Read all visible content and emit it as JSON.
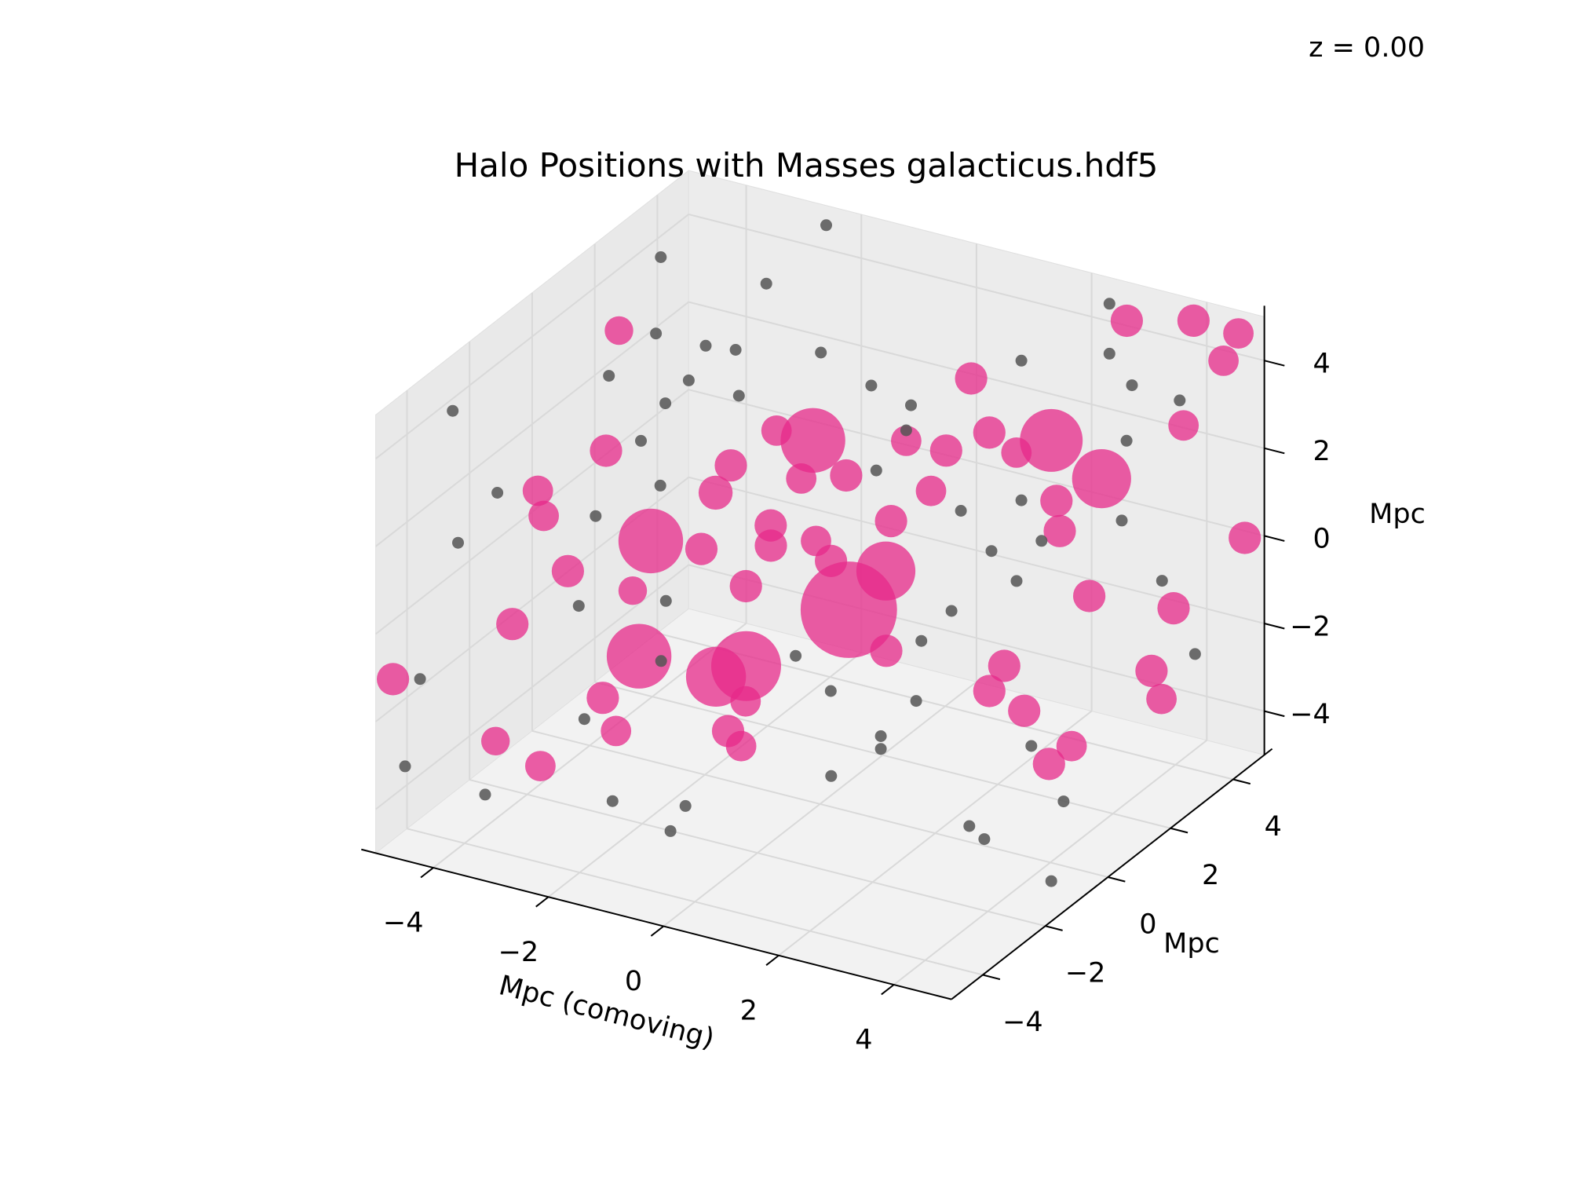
{
  "chart_data": {
    "type": "scatter3d",
    "title": "Halo Positions with Masses galacticus.hdf5",
    "annotation": "z = 0.00",
    "xlabel": "Mpc (comoving)",
    "ylabel": "Mpc",
    "zlabel": "Mpc",
    "xlim": [
      -5,
      5
    ],
    "ylim": [
      -5,
      5
    ],
    "zlim": [
      -5,
      5
    ],
    "xticks": [
      {
        "value": -4,
        "label": "−4"
      },
      {
        "value": -2,
        "label": "−2"
      },
      0,
      2,
      4
    ],
    "yticks": [
      {
        "value": -4,
        "label": "−4"
      },
      {
        "value": -2,
        "label": "−2"
      },
      0,
      2,
      4
    ],
    "zticks": [
      {
        "value": -4,
        "label": "−4"
      },
      {
        "value": -2,
        "label": "−2"
      },
      0,
      2,
      4
    ],
    "grid": true,
    "series": [
      {
        "color": "#e7298a",
        "alpha": 0.75,
        "x": [
          0.5,
          -0.74,
          -0.72,
          -1.21,
          2.93,
          3.26,
          -1.31,
          -0.97,
          0.6,
          -4.7,
          -4.58,
          -2.63,
          -3.27,
          -3.17,
          -3.17,
          -2.75,
          -1.6,
          -2.14,
          -2.92,
          -1.37,
          0.26,
          -1.55,
          -1.27,
          -1.3,
          -0.87,
          -0.09,
          -0.31,
          -0.07,
          0.19,
          0.41,
          0.84,
          0.56,
          0.69,
          0.45,
          1.31,
          1.78,
          3.62,
          3.02,
          2.61,
          3.77,
          4.55,
          4.29,
          4.14,
          4.66,
          3.59,
          4.51,
          4.67,
          4.3,
          3.2,
          2.94,
          4.09,
          4.52,
          4.37,
          1.15,
          -0.75,
          -0.51,
          0.23,
          -0.2,
          -0.43,
          -1.08
        ],
        "y": [
          0,
          -1,
          -2,
          2,
          2,
          3,
          -3,
          -4,
          1,
          -5,
          2,
          -2,
          -3,
          -3,
          -4,
          -3,
          -4,
          -5,
          -5,
          -4,
          -3,
          0,
          -1,
          1,
          1,
          1,
          -1,
          0,
          0,
          2,
          2,
          3,
          1,
          4,
          3,
          3,
          1,
          2,
          5,
          5,
          5,
          5,
          4,
          5,
          2,
          3,
          2,
          3,
          0,
          0,
          -1,
          -1,
          0,
          0,
          -1,
          -2,
          -2,
          -2,
          -3,
          -4
        ],
        "z": [
          -0.4,
          -1.54,
          -1.22,
          1.78,
          3.16,
          1.84,
          2.24,
          0.28,
          -0.04,
          -0.93,
          3.16,
          3.3,
          2.73,
          2.19,
          0.28,
          1.07,
          -0.88,
          -2.06,
          -1.75,
          -1.56,
          -1.92,
          2.21,
          2.24,
          2.53,
          1.58,
          1.91,
          1.35,
          0.98,
          0.61,
          2.31,
          1.31,
          1.58,
          1.13,
          2.63,
          2.24,
          1.94,
          1.88,
          1.81,
          4.11,
          4.5,
          4.47,
          3.76,
          2.79,
          -0.16,
          -0.17,
          -0.7,
          -1.52,
          -2.84,
          -0.78,
          -1.44,
          -0.95,
          -2.02,
          -2.22,
          -1.12,
          -2.35,
          -2.39,
          2.55,
          1.02,
          2.35,
          1.74
        ],
        "sizes": [
          800,
          420,
          310,
          360,
          340,
          300,
          360,
          360,
          300,
          90,
          70,
          90,
          80,
          80,
          90,
          90,
          90,
          80,
          70,
          80,
          80,
          90,
          100,
          80,
          80,
          90,
          90,
          80,
          90,
          80,
          80,
          90,
          90,
          90,
          90,
          80,
          90,
          90,
          90,
          90,
          80,
          80,
          80,
          90,
          90,
          90,
          90,
          80,
          90,
          90,
          90,
          90,
          80,
          90,
          80,
          90,
          90,
          90,
          90,
          70
        ]
      },
      {
        "color": "#555555",
        "alpha": 0.85,
        "size": 12,
        "x": [
          -4.94,
          -2.61,
          -3.65,
          -4.75,
          -4.48,
          -3.43,
          -3.57,
          -4.23,
          -4.49,
          -3.1,
          0.12,
          0.38,
          -1.43,
          -1.92,
          1.28,
          1.6,
          3.68,
          3.94,
          4.56,
          4.23,
          3.67,
          2.31,
          2.31,
          3.53,
          3.61,
          4.31,
          4.34,
          2.87,
          1.89,
          1.36,
          1.74,
          1.76,
          1.67,
          -0.74,
          -0.05,
          0.41,
          -0.11,
          -3.04,
          -4.16,
          -3.64,
          -2.16,
          -3.91,
          -4.21,
          -3.23,
          -3.11,
          -2.23,
          -2.81,
          -2.56,
          -1.59,
          -1.13,
          0.12,
          0.73,
          1.6,
          2.76,
          2.41,
          3.15,
          2.7,
          0.78
        ],
        "y": [
          4,
          5,
          5,
          -3,
          3,
          -4,
          -5,
          -5,
          -5,
          -5,
          -5,
          -5,
          -4,
          -4,
          -2,
          -1,
          -2,
          -2,
          -1,
          0,
          0,
          5,
          5,
          5,
          3,
          3,
          4,
          1,
          2,
          2,
          1,
          0,
          0,
          3,
          3,
          2,
          2,
          3,
          4,
          4,
          4,
          3,
          1,
          1,
          0,
          -1,
          -2,
          -3,
          -2,
          -3,
          -1,
          -1,
          -1,
          2,
          2,
          4,
          5,
          5
        ],
        "z": [
          3.6,
          4.55,
          2.87,
          4.06,
          2.57,
          3.19,
          2.56,
          -0.77,
          -2.85,
          -3.03,
          -2.79,
          -2.13,
          -3.18,
          -1.47,
          -2.82,
          -2.65,
          -3.16,
          -3.37,
          -4.68,
          -3.53,
          -2.45,
          4.4,
          3.26,
          2.6,
          1.0,
          -0.14,
          -2.36,
          0.49,
          0.29,
          1.03,
          -0.57,
          -0.69,
          -2.09,
          2.63,
          2.41,
          2.55,
          1.46,
          1.63,
          1.84,
          1.92,
          2.35,
          1.69,
          2.81,
          2.51,
          2.25,
          2.08,
          1.75,
          0.34,
          0.22,
          -0.44,
          -1.02,
          -1.62,
          -2.36,
          0.81,
          1.62,
          2.11,
          2.67,
          2.59
        ]
      }
    ]
  }
}
